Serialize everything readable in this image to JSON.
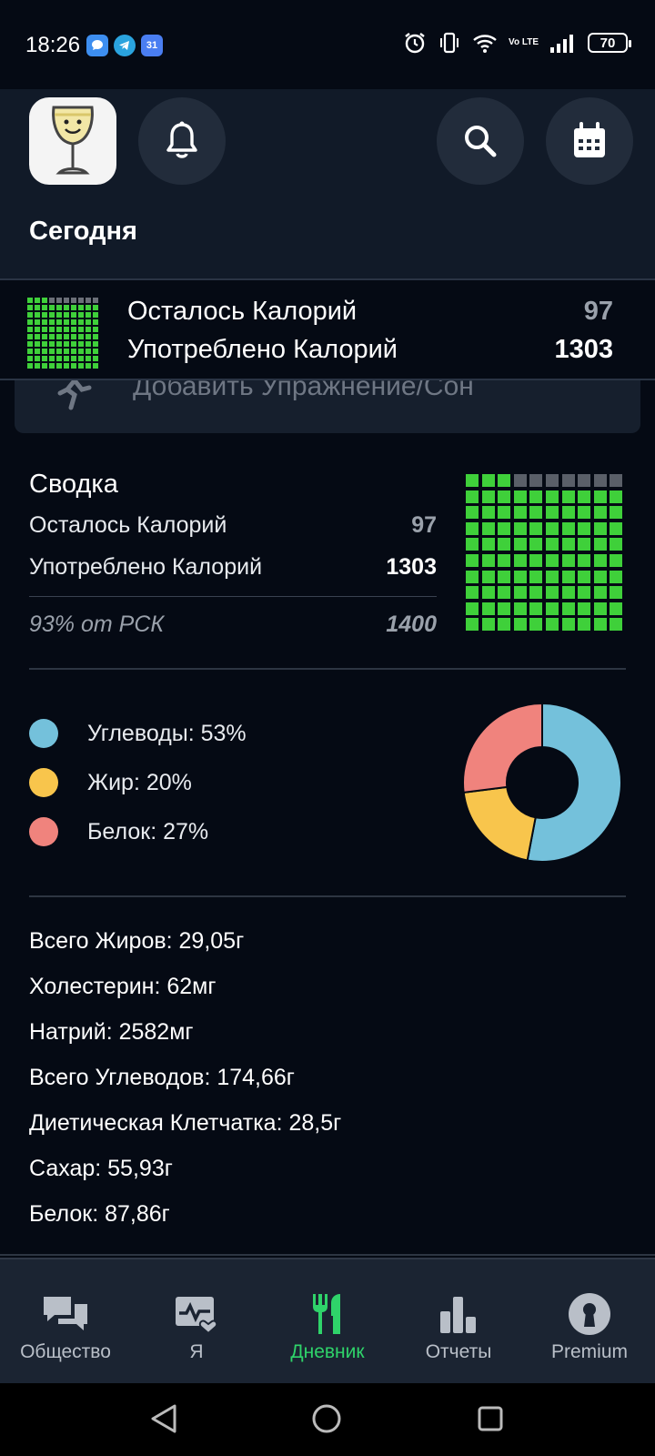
{
  "status_bar": {
    "time": "18:26",
    "battery": "70",
    "network": "Vo LTE",
    "app_icons": [
      "messenger-icon",
      "telegram-icon",
      "calendar-31-icon"
    ],
    "calendar_day": "31"
  },
  "header": {
    "title": "Сегодня",
    "icons": [
      "app-logo-wineglass",
      "bell-icon",
      "search-icon",
      "calendar-icon"
    ]
  },
  "sticky_bar": {
    "remaining_label": "Осталось Калорий",
    "remaining_value": "97",
    "consumed_label": "Употреблено Калорий",
    "consumed_value": "1303",
    "progress_fraction": 0.93
  },
  "exercise": {
    "label": "Добавить Упражнение/Сон"
  },
  "summary": {
    "title": "Сводка",
    "remaining_label": "Осталось Калорий",
    "remaining_value": "97",
    "consumed_label": "Употреблено Калорий",
    "consumed_value": "1303",
    "rsk_label": "93% от РСК",
    "rsk_value": "1400",
    "progress_fraction": 0.93
  },
  "macros": [
    {
      "label": "Углеводы: 53%",
      "percent": 53,
      "color": "#74c1db"
    },
    {
      "label": "Жир: 20%",
      "percent": 20,
      "color": "#f8c54c"
    },
    {
      "label": "Белок: 27%",
      "percent": 27,
      "color": "#f0837d"
    }
  ],
  "nutrients": [
    "Всего Жиров: 29,05г",
    "Холестерин: 62мг",
    "Натрий: 2582мг",
    "Всего Углеводов: 174,66г",
    "Диетическая Клетчатка: 28,5г",
    "Сахар: 55,93г",
    "Белок: 87,86г"
  ],
  "bottom_nav": [
    {
      "label": "Общество",
      "icon": "chat-bubbles-icon",
      "active": false
    },
    {
      "label": "Я",
      "icon": "heart-monitor-icon",
      "active": false
    },
    {
      "label": "Дневник",
      "icon": "fork-knife-icon",
      "active": true
    },
    {
      "label": "Отчеты",
      "icon": "bar-chart-icon",
      "active": false
    },
    {
      "label": "Premium",
      "icon": "keyhole-icon",
      "active": false
    }
  ],
  "colors": {
    "background": "#050a14",
    "header": "#111a28",
    "accent_green": "#2fd36a",
    "grid_green": "#3fd03a"
  }
}
